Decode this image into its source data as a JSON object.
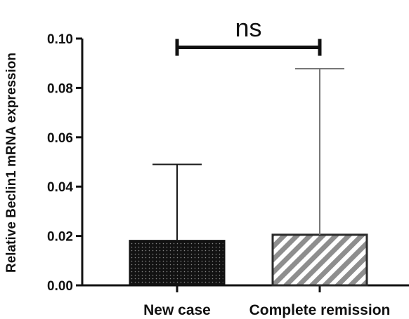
{
  "chart_data": {
    "type": "bar",
    "title": "",
    "xlabel": "",
    "ylabel": "Relative Beclin1 mRNA expression",
    "ylim": [
      0,
      0.1
    ],
    "yticks": [
      "0.00",
      "0.02",
      "0.04",
      "0.06",
      "0.08",
      "0.10"
    ],
    "categories": [
      "New case",
      "Complete remission"
    ],
    "values": [
      0.018,
      0.0205
    ],
    "error_upper": [
      0.049,
      0.0878
    ],
    "bar_patterns": [
      "dotted",
      "diagonal-hatch"
    ],
    "bar_colors": [
      "#1a1a1a",
      "#8c8c8c"
    ],
    "error_colors": [
      "#1a1a1a",
      "#777777"
    ],
    "grid": false,
    "legend": "none",
    "annotations": [
      {
        "type": "significance",
        "label": "ns",
        "between": [
          0,
          1
        ],
        "y": 0.097
      }
    ]
  }
}
